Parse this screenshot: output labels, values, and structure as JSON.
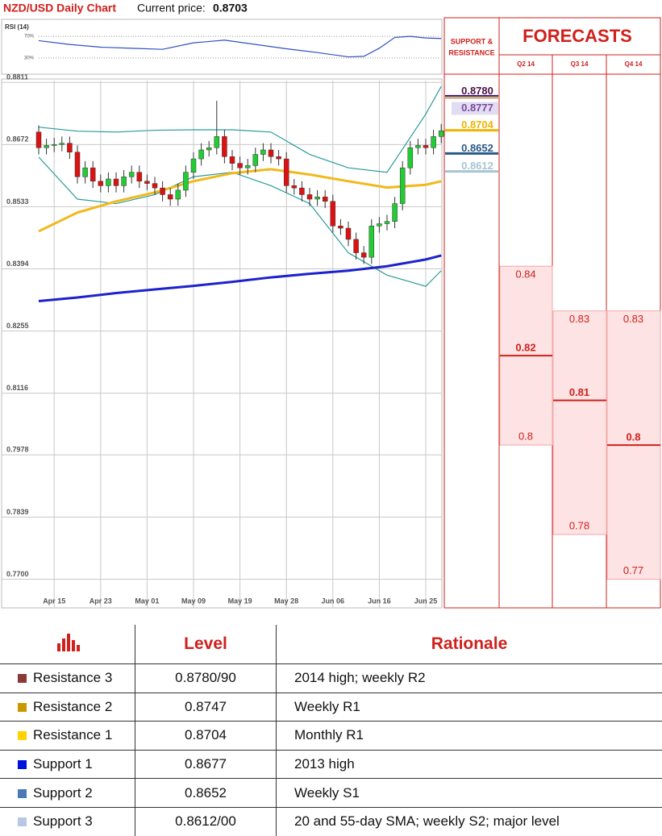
{
  "header": {
    "title": "NZD/USD Daily Chart",
    "price_label": "Current price:",
    "price": 0.8703
  },
  "chart_data": {
    "type": "candlestick",
    "categories": [
      null,
      null,
      "Apr 15",
      null,
      null,
      null,
      null,
      null,
      "Apr 23",
      null,
      null,
      null,
      null,
      null,
      "May 01",
      null,
      null,
      null,
      null,
      null,
      "May 09",
      null,
      null,
      null,
      null,
      null,
      "May 19",
      null,
      null,
      null,
      null,
      null,
      "May 28",
      null,
      null,
      null,
      null,
      null,
      "Jun 06",
      null,
      null,
      null,
      null,
      null,
      "Jun 16",
      null,
      null,
      null,
      null,
      null,
      "Jun 25",
      null,
      null
    ],
    "open": [
      0.87,
      0.8665,
      0.867,
      0.8672,
      0.8675,
      0.8655,
      0.86,
      0.862,
      0.859,
      0.858,
      0.8595,
      0.858,
      0.86,
      0.861,
      0.859,
      0.8585,
      0.8575,
      0.856,
      0.855,
      0.857,
      0.861,
      0.864,
      0.866,
      0.8665,
      0.869,
      0.8645,
      0.863,
      0.862,
      0.8625,
      0.865,
      0.866,
      0.8645,
      0.864,
      0.858,
      0.8575,
      0.856,
      0.855,
      0.8555,
      0.8545,
      0.849,
      0.8485,
      0.846,
      0.843,
      0.842,
      0.849,
      0.8495,
      0.85,
      0.854,
      0.862,
      0.8665,
      0.867,
      0.8665,
      0.869
    ],
    "high": [
      0.8715,
      0.8685,
      0.8687,
      0.869,
      0.869,
      0.867,
      0.8635,
      0.8635,
      0.8605,
      0.861,
      0.861,
      0.8615,
      0.8625,
      0.8625,
      0.8605,
      0.86,
      0.859,
      0.8575,
      0.8585,
      0.8625,
      0.8655,
      0.8675,
      0.868,
      0.877,
      0.8705,
      0.866,
      0.8645,
      0.864,
      0.8665,
      0.8675,
      0.8675,
      0.866,
      0.8655,
      0.8595,
      0.859,
      0.8575,
      0.857,
      0.857,
      0.856,
      0.8505,
      0.85,
      0.8475,
      0.8445,
      0.8505,
      0.851,
      0.8515,
      0.8555,
      0.8635,
      0.868,
      0.8685,
      0.8685,
      0.8705,
      0.8718
    ],
    "low": [
      0.865,
      0.865,
      0.8655,
      0.8657,
      0.864,
      0.8585,
      0.8585,
      0.8575,
      0.8565,
      0.8565,
      0.8565,
      0.8565,
      0.8585,
      0.8575,
      0.857,
      0.856,
      0.8545,
      0.8535,
      0.8535,
      0.8555,
      0.8595,
      0.8625,
      0.8645,
      0.865,
      0.863,
      0.8615,
      0.8605,
      0.8605,
      0.861,
      0.8635,
      0.863,
      0.8625,
      0.8565,
      0.856,
      0.8545,
      0.8535,
      0.8535,
      0.853,
      0.8475,
      0.847,
      0.8445,
      0.8415,
      0.8405,
      0.8405,
      0.8475,
      0.848,
      0.8485,
      0.8525,
      0.8605,
      0.865,
      0.865,
      0.865,
      0.8675
    ],
    "close": [
      0.8665,
      0.867,
      0.8672,
      0.8675,
      0.8655,
      0.86,
      0.862,
      0.859,
      0.858,
      0.8595,
      0.858,
      0.86,
      0.861,
      0.859,
      0.8585,
      0.8575,
      0.856,
      0.855,
      0.857,
      0.861,
      0.864,
      0.866,
      0.8665,
      0.869,
      0.8645,
      0.863,
      0.862,
      0.8625,
      0.865,
      0.866,
      0.8645,
      0.864,
      0.858,
      0.8575,
      0.856,
      0.855,
      0.8555,
      0.8545,
      0.849,
      0.8485,
      0.846,
      0.843,
      0.842,
      0.849,
      0.8495,
      0.85,
      0.854,
      0.862,
      0.8665,
      0.867,
      0.8665,
      0.869,
      0.8703
    ],
    "up_color": "#22cc33",
    "down_color": "#dd1111",
    "overlays": [
      {
        "color": "#2a9a9a",
        "x": [
          0,
          5,
          10,
          15,
          20,
          25,
          30,
          35,
          40,
          45,
          50,
          52
        ],
        "values": [
          0.8711,
          0.8702,
          0.87,
          0.8704,
          0.8705,
          0.8705,
          0.87,
          0.865,
          0.862,
          0.861,
          0.874,
          0.8802
        ]
      },
      {
        "color": "#2a9a9a",
        "x": [
          0,
          5,
          10,
          15,
          20,
          25,
          30,
          35,
          40,
          45,
          50,
          52
        ],
        "values": [
          0.8644,
          0.855,
          0.854,
          0.856,
          0.86,
          0.861,
          0.858,
          0.854,
          0.843,
          0.838,
          0.8355,
          0.839
        ]
      },
      {
        "color": "#f2b81c",
        "x": [
          0,
          5,
          10,
          15,
          20,
          25,
          30,
          35,
          40,
          45,
          50,
          52
        ],
        "values": [
          0.8478,
          0.852,
          0.8545,
          0.8565,
          0.859,
          0.8608,
          0.8617,
          0.8605,
          0.859,
          0.8576,
          0.8582,
          0.859
        ]
      },
      {
        "color": "#1c22cc",
        "x": [
          0,
          5,
          10,
          15,
          20,
          25,
          30,
          35,
          40,
          45,
          50,
          52
        ],
        "values": [
          0.8322,
          0.833,
          0.834,
          0.8348,
          0.8356,
          0.8365,
          0.8375,
          0.8383,
          0.839,
          0.84,
          0.8415,
          0.8424
        ]
      }
    ],
    "ylim": [
      0.7636,
      0.8815
    ],
    "yticks": [
      0.8811,
      0.8672,
      0.8533,
      0.8394,
      0.8255,
      0.8116,
      0.7978,
      0.7839,
      {
        "value": 0.77,
        "label": "0.7700"
      }
    ],
    "grid": true,
    "rsi": {
      "label": "RSI (14)",
      "color": "#3050c0",
      "ylim": [
        0,
        100
      ],
      "yticks": [
        {
          "value": 70,
          "label": "70%"
        },
        {
          "value": 30,
          "label": "30%"
        }
      ],
      "x": [
        0,
        4,
        8,
        12,
        16,
        20,
        24,
        28,
        32,
        36,
        40,
        42,
        44,
        46,
        48,
        50,
        52
      ],
      "values": [
        62,
        55,
        50,
        48,
        46,
        58,
        63,
        55,
        47,
        40,
        32,
        33,
        48,
        68,
        70,
        67,
        66
      ]
    }
  },
  "support_resistance": {
    "title_lines": [
      "SUPPORT &",
      "RESISTANCE"
    ],
    "values": [
      0.878,
      0.8777,
      0.8704,
      0.8652,
      0.8612
    ],
    "value_labels": [
      "0.8780",
      "0.8777",
      "0.8704",
      "0.8652",
      "0.8612"
    ],
    "colors": [
      "#4a1048",
      "#7a4aa0",
      "#f0b400",
      "#2a5a8a",
      "#a8c4d4"
    ],
    "line_colors": [
      "#3a0a70",
      "#c8b080",
      "#f0b400",
      "#2a5a8a",
      "#a8c4d4"
    ]
  },
  "forecasts": {
    "title": "FORECASTS",
    "quarters": [
      "Q2 14",
      "Q3 14",
      "Q4 14"
    ],
    "high": [
      0.84,
      0.83,
      0.83
    ],
    "mid": [
      0.82,
      0.81,
      0.8
    ],
    "low": [
      0.8,
      0.78,
      0.77
    ]
  },
  "table": {
    "headers": [
      "Level",
      "Rationale"
    ],
    "rows": [
      {
        "color": "#8b3a3a",
        "name": "Resistance 3",
        "level": "0.8780/90",
        "rationale": "2014 high; weekly R2"
      },
      {
        "color": "#c89a00",
        "name": "Resistance 2",
        "level": "0.8747",
        "rationale": "Weekly R1"
      },
      {
        "color": "#ffd200",
        "name": "Resistance 1",
        "level": "0.8704",
        "rationale": "Monthly R1"
      },
      {
        "color": "#0010dd",
        "name": "Support 1",
        "level": "0.8677",
        "rationale": "2013 high"
      },
      {
        "color": "#4a7ab5",
        "name": "Support 2",
        "level": "0.8652",
        "rationale": "Weekly S1"
      },
      {
        "color": "#b8c8e4",
        "name": "Support 3",
        "level": "0.8612/00",
        "rationale": "20 and 55-day SMA; weekly S2; major level"
      }
    ]
  }
}
